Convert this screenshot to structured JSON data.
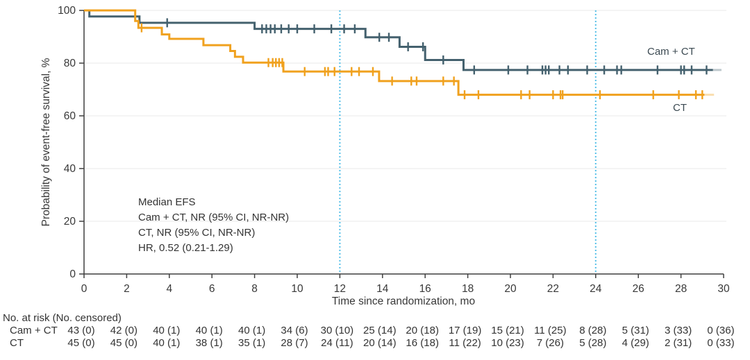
{
  "chart_data": {
    "type": "line",
    "subtype": "kaplan-meier-step",
    "title": "",
    "xlabel": "Time since randomization, mo",
    "ylabel": "Probability of event-free survival, %",
    "xlim": [
      0,
      30
    ],
    "ylim": [
      0,
      100
    ],
    "x_ticks": [
      0,
      2,
      4,
      6,
      8,
      10,
      12,
      14,
      16,
      18,
      20,
      22,
      24,
      26,
      28,
      30
    ],
    "y_ticks": [
      0,
      20,
      40,
      60,
      80,
      100
    ],
    "grid": "horizontal-light",
    "grid_color": "#e8e8e8",
    "axis_color": "#3f3f3f",
    "reference_lines": {
      "x_values": [
        12,
        24
      ],
      "style": "dotted",
      "color": "#55c0e8"
    },
    "annotation": {
      "lines": [
        "Median EFS",
        "Cam + CT, NR (95% CI, NR-NR)",
        "CT, NR (95% CI, NR-NR)",
        "HR, 0.52 (0.21-1.29)"
      ]
    },
    "series": [
      {
        "name": "Cam + CT",
        "color": "#44616e",
        "fade_color": "rgba(68,97,110,0.35)",
        "steps": [
          [
            0,
            100
          ],
          [
            0.25,
            97.7
          ],
          [
            2.6,
            95.3
          ],
          [
            8.0,
            93.0
          ],
          [
            13.2,
            89.8
          ],
          [
            14.8,
            86.2
          ],
          [
            16.0,
            81.2
          ],
          [
            17.8,
            77.4
          ]
        ],
        "end_month": 29.5,
        "fade_end_month": 29.9,
        "censor_marks": [
          [
            3.9,
            95.3
          ],
          [
            8.35,
            93.0
          ],
          [
            8.55,
            93.0
          ],
          [
            8.75,
            93.0
          ],
          [
            8.95,
            93.0
          ],
          [
            9.25,
            93.0
          ],
          [
            9.6,
            93.0
          ],
          [
            10.0,
            93.0
          ],
          [
            10.8,
            93.0
          ],
          [
            11.6,
            93.0
          ],
          [
            12.2,
            93.0
          ],
          [
            12.7,
            93.0
          ],
          [
            13.85,
            89.8
          ],
          [
            14.3,
            89.8
          ],
          [
            15.2,
            86.2
          ],
          [
            15.9,
            86.2
          ],
          [
            16.85,
            81.2
          ],
          [
            18.3,
            77.4
          ],
          [
            19.9,
            77.4
          ],
          [
            20.8,
            77.4
          ],
          [
            21.5,
            77.4
          ],
          [
            21.65,
            77.4
          ],
          [
            21.8,
            77.4
          ],
          [
            22.3,
            77.4
          ],
          [
            22.7,
            77.4
          ],
          [
            23.6,
            77.4
          ],
          [
            24.4,
            77.4
          ],
          [
            25.0,
            77.4
          ],
          [
            25.2,
            77.4
          ],
          [
            26.9,
            77.4
          ],
          [
            28.0,
            77.4
          ],
          [
            28.15,
            77.4
          ],
          [
            28.5,
            77.4
          ],
          [
            29.2,
            77.4
          ]
        ]
      },
      {
        "name": "CT",
        "color": "#f0a11e",
        "fade_color": "rgba(240,161,30,0.35)",
        "steps": [
          [
            0,
            100
          ],
          [
            2.4,
            96.0
          ],
          [
            2.55,
            93.4
          ],
          [
            3.65,
            90.9
          ],
          [
            4.0,
            89.2
          ],
          [
            5.6,
            86.8
          ],
          [
            6.86,
            84.6
          ],
          [
            7.08,
            82.4
          ],
          [
            7.46,
            80.2
          ],
          [
            9.35,
            76.8
          ],
          [
            13.84,
            73.2
          ],
          [
            17.56,
            68.0
          ]
        ],
        "end_month": 29.1,
        "fade_end_month": 29.55,
        "censor_marks": [
          [
            2.7,
            93.4
          ],
          [
            8.65,
            80.2
          ],
          [
            8.85,
            80.2
          ],
          [
            9.0,
            80.2
          ],
          [
            9.15,
            80.2
          ],
          [
            9.3,
            80.2
          ],
          [
            10.35,
            76.8
          ],
          [
            11.3,
            76.8
          ],
          [
            11.45,
            76.8
          ],
          [
            11.75,
            76.8
          ],
          [
            12.55,
            76.8
          ],
          [
            12.9,
            76.8
          ],
          [
            13.55,
            76.8
          ],
          [
            14.45,
            73.2
          ],
          [
            15.35,
            73.2
          ],
          [
            15.6,
            73.2
          ],
          [
            16.85,
            73.2
          ],
          [
            17.35,
            73.2
          ],
          [
            17.85,
            68.0
          ],
          [
            18.5,
            68.0
          ],
          [
            20.5,
            68.0
          ],
          [
            20.9,
            68.0
          ],
          [
            22.0,
            68.0
          ],
          [
            22.35,
            68.0
          ],
          [
            22.45,
            68.0
          ],
          [
            24.2,
            68.0
          ],
          [
            26.7,
            68.0
          ],
          [
            27.9,
            68.0
          ],
          [
            28.7,
            68.0
          ],
          [
            29.0,
            68.0
          ]
        ]
      }
    ]
  },
  "risk_table": {
    "title": "No. at risk (No. censored)",
    "months": [
      0,
      2,
      4,
      6,
      8,
      10,
      12,
      14,
      16,
      18,
      20,
      22,
      24,
      26,
      28,
      30
    ],
    "rows": [
      {
        "label": "Cam + CT",
        "values": [
          "43 (0)",
          "42 (0)",
          "40 (1)",
          "40 (1)",
          "40 (1)",
          "34 (6)",
          "30 (10)",
          "25 (14)",
          "20 (18)",
          "17 (19)",
          "15 (21)",
          "11 (25)",
          "8 (28)",
          "5 (31)",
          "3 (33)",
          "0 (36)"
        ]
      },
      {
        "label": "CT",
        "values": [
          "45 (0)",
          "45 (0)",
          "40 (1)",
          "38 (1)",
          "35 (1)",
          "28 (7)",
          "24 (11)",
          "20 (14)",
          "16 (18)",
          "11 (22)",
          "10 (23)",
          "7 (26)",
          "5 (28)",
          "4 (29)",
          "2 (31)",
          "0 (33)"
        ]
      }
    ]
  }
}
